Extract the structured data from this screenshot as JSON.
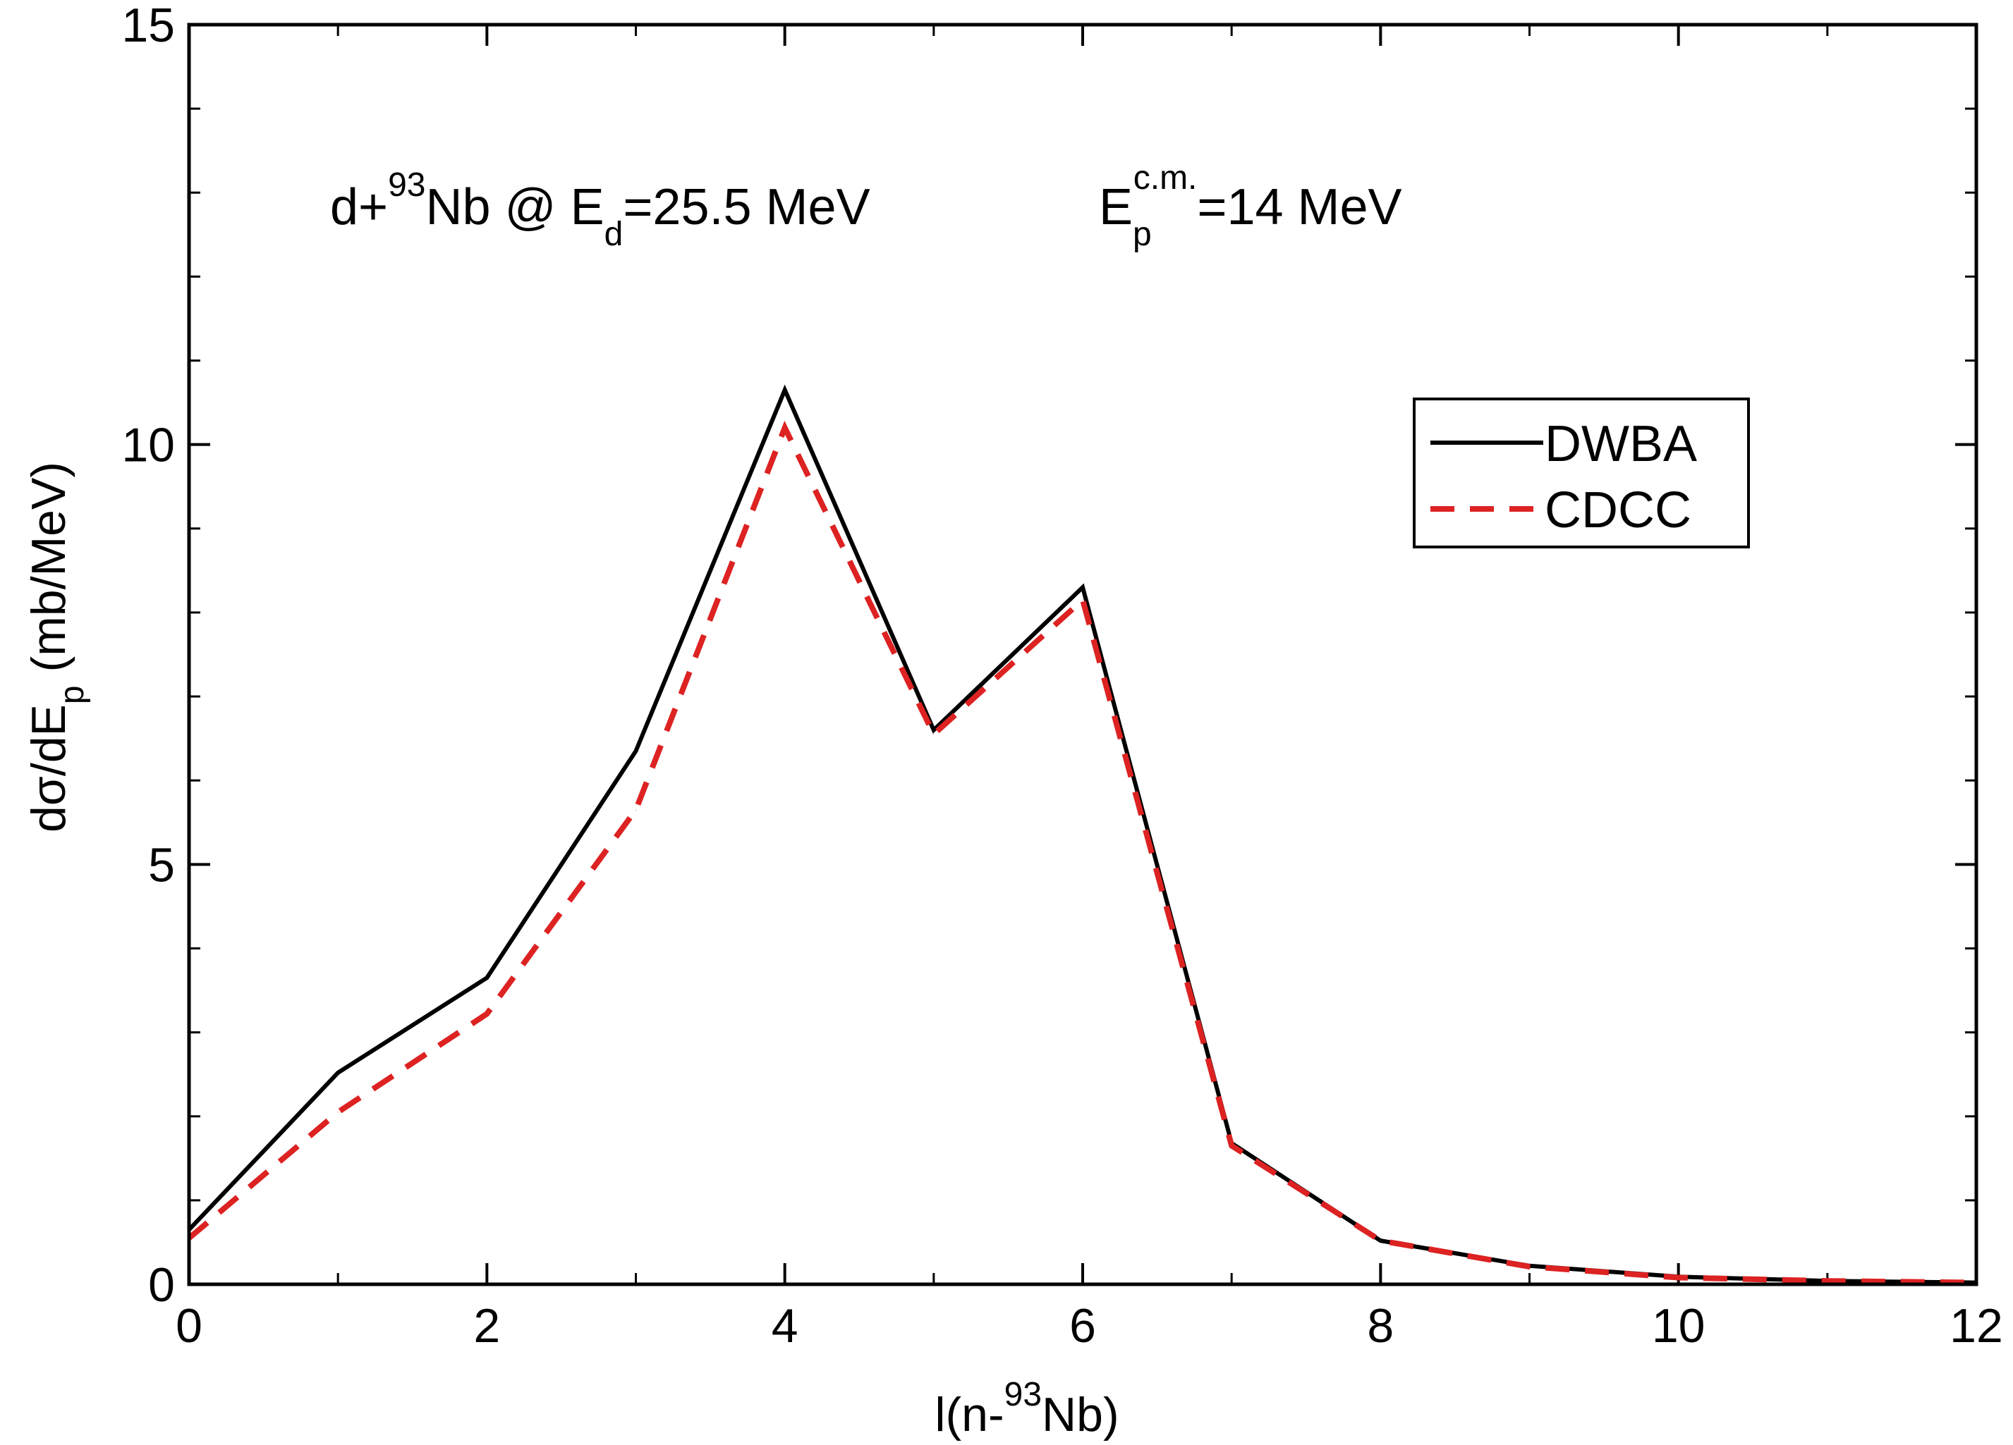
{
  "chart_data": {
    "type": "line",
    "annotation": {
      "prefix": "d+",
      "sup1": "93",
      "mid": "Nb @ E",
      "sub1": "d",
      "mid2": "=25.5 MeV",
      "ep_base": "E",
      "ep_sub": "p",
      "ep_sup": "c.m.",
      "ep_rest": "=14 MeV"
    },
    "xlabel": {
      "pre": "l(n-",
      "sup": "93",
      "post": "Nb)"
    },
    "ylabel": {
      "pre": "dσ/dE",
      "sub": "p",
      "post": " (mb/MeV)"
    },
    "xlim": [
      0,
      12
    ],
    "ylim": [
      0,
      15
    ],
    "xticks_major": [
      0,
      2,
      4,
      6,
      8,
      10,
      12
    ],
    "xticks_minor": [
      1,
      3,
      5,
      7,
      9,
      11
    ],
    "yticks_major": [
      0,
      5,
      10,
      15
    ],
    "yticks_minor": [
      1,
      2,
      3,
      4,
      6,
      7,
      8,
      9,
      11,
      12,
      13,
      14
    ],
    "xtick_labels": [
      "0",
      "2",
      "4",
      "6",
      "8",
      "10",
      "12"
    ],
    "ytick_labels": [
      "0",
      "5",
      "10",
      "15"
    ],
    "legend_position": "upper-right",
    "x": [
      0,
      1,
      2,
      3,
      4,
      5,
      6,
      7,
      8,
      9,
      10,
      11,
      12
    ],
    "series": [
      {
        "name": "DWBA",
        "color": "#000000",
        "style": "solid",
        "values": [
          0.65,
          2.52,
          3.65,
          6.35,
          10.65,
          6.6,
          8.3,
          1.68,
          0.52,
          0.22,
          0.09,
          0.04,
          0.02
        ]
      },
      {
        "name": "CDCC",
        "color": "#dd2222",
        "style": "dashed",
        "values": [
          0.55,
          2.05,
          3.22,
          5.65,
          10.2,
          6.55,
          8.15,
          1.65,
          0.52,
          0.21,
          0.08,
          0.04,
          0.02
        ]
      }
    ]
  }
}
